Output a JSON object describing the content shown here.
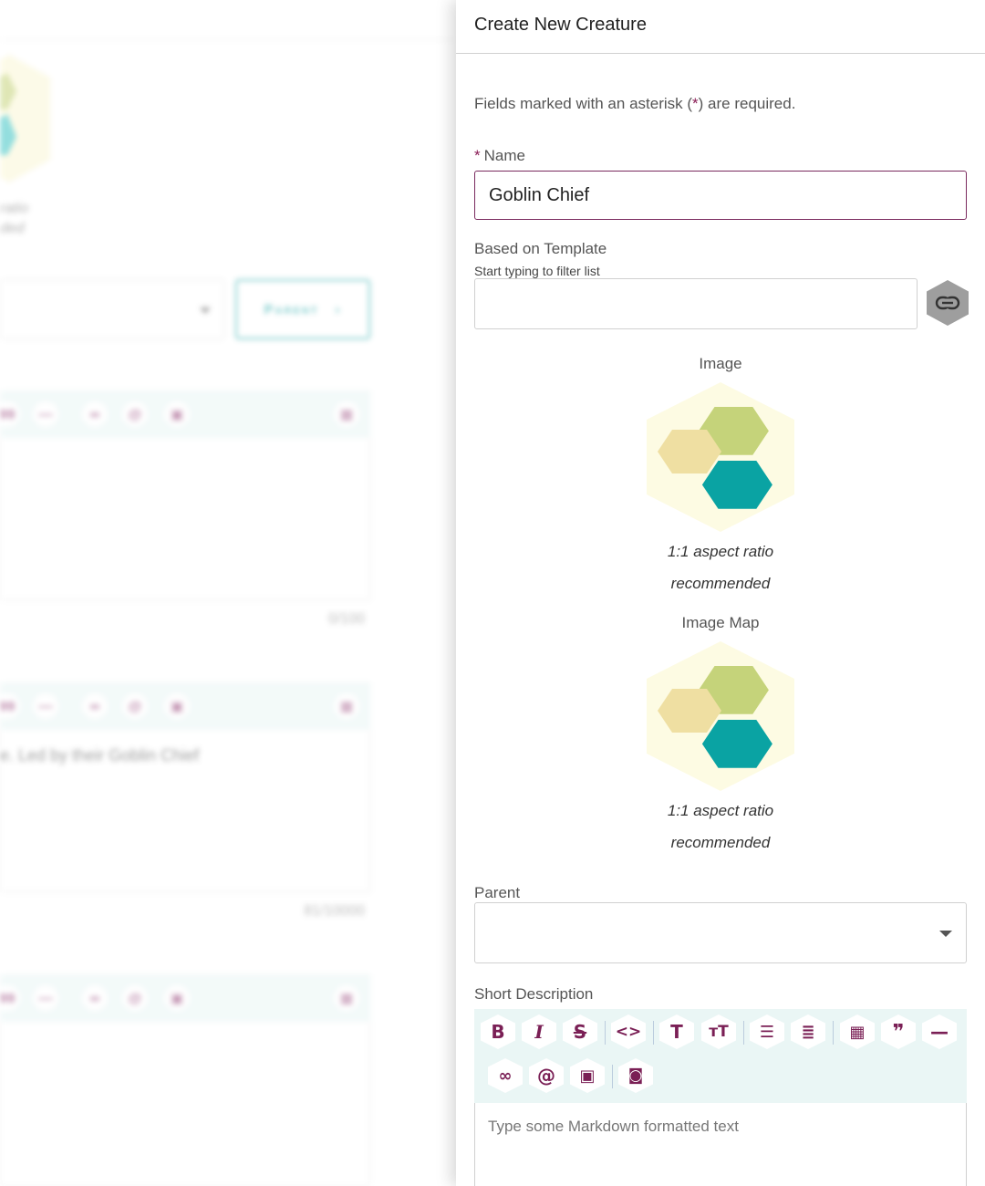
{
  "background": {
    "image_caption_line1": "ratio",
    "image_caption_line2": "ded",
    "parent_button_label": "Parent",
    "counter_1": "0/100",
    "description_text": "e. Led by their Goblin Chief",
    "counter_2": "81/10000"
  },
  "drawer": {
    "title": "Create New Creature",
    "required_note_prefix": "Fields marked with an asterisk (",
    "required_note_star": "*",
    "required_note_suffix": ") are required.",
    "name": {
      "star": "*",
      "label": "Name",
      "value": "Goblin Chief"
    },
    "template": {
      "label": "Based on Template",
      "hint": "Start typing to filter list",
      "value": "",
      "link_icon": "link-icon"
    },
    "image": {
      "label": "Image",
      "caption_line1": "1:1 aspect ratio",
      "caption_line2": "recommended"
    },
    "image_map": {
      "label": "Image Map",
      "caption_line1": "1:1 aspect ratio",
      "caption_line2": "recommended"
    },
    "parent": {
      "label": "Parent",
      "value": ""
    },
    "short_description": {
      "label": "Short Description",
      "placeholder": "Type some Markdown formatted text"
    }
  },
  "colors": {
    "accent": "#7a1f55",
    "toolbar_bg": "#eaf6f5",
    "hex_bg": "#fdfbe3",
    "hex_green": "#c5d37a",
    "hex_tan": "#efdfa2",
    "hex_teal": "#0aa3a3",
    "link_hex": "#9e9e9e"
  }
}
